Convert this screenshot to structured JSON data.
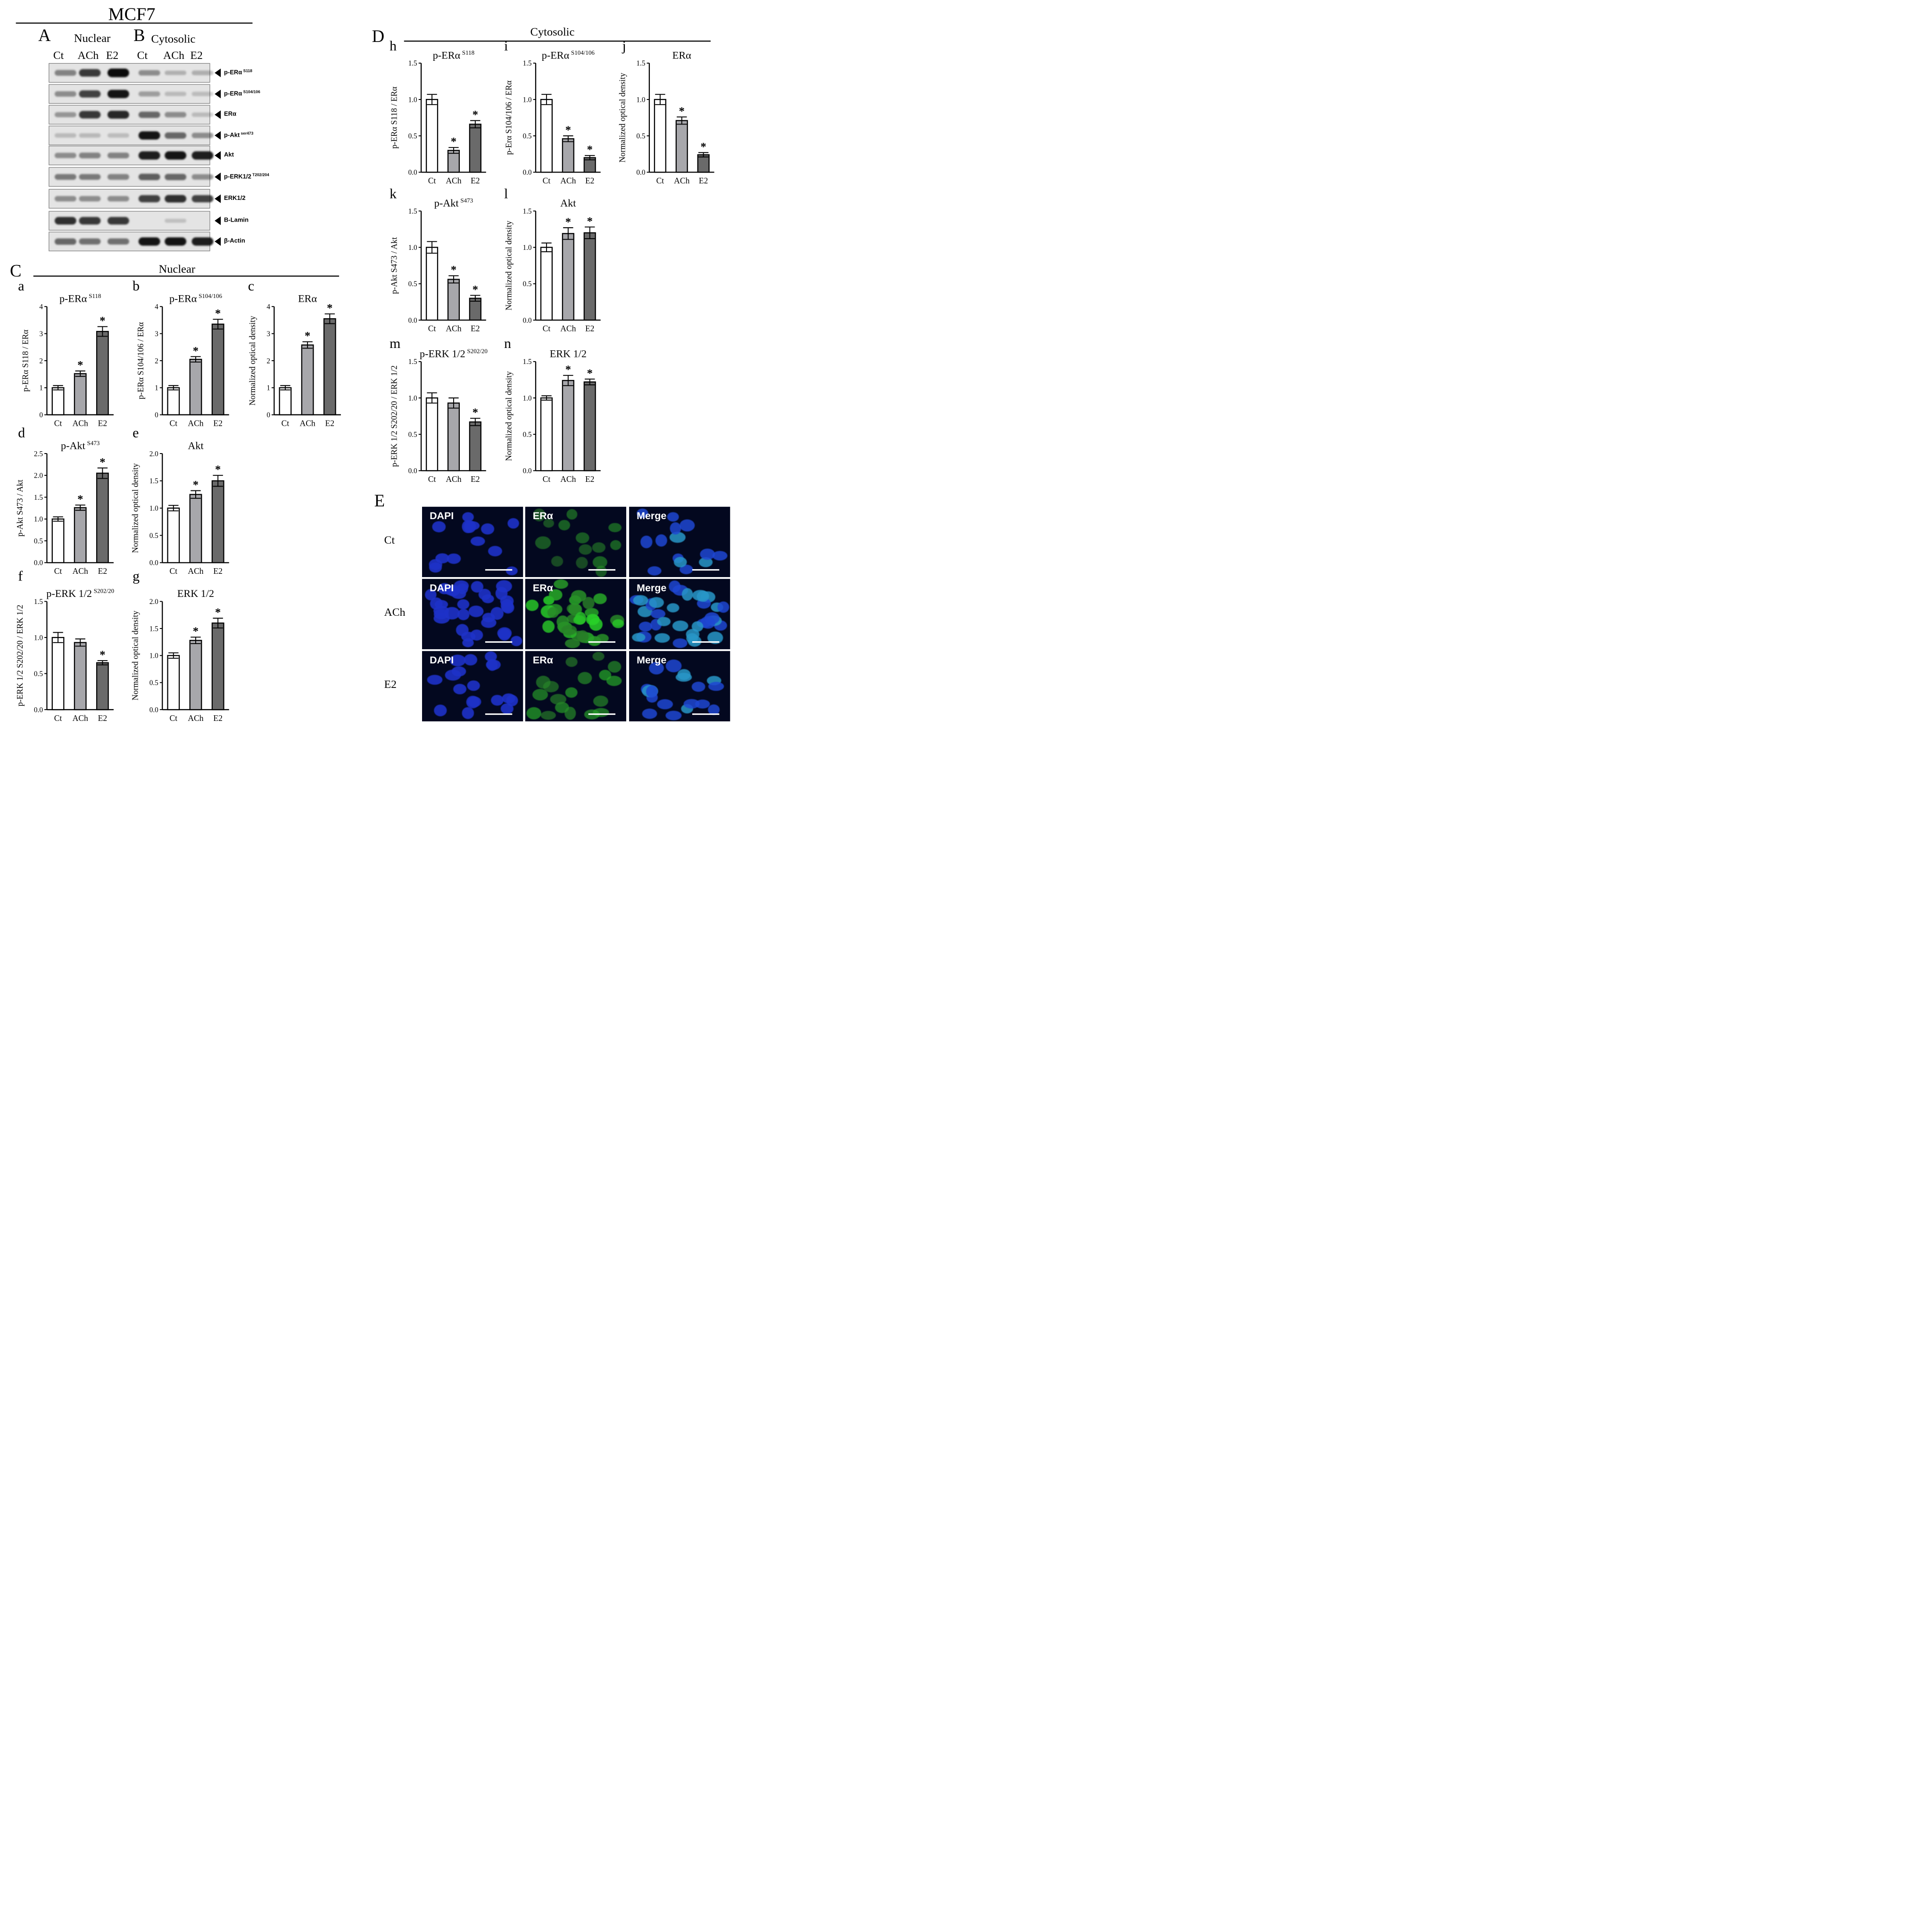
{
  "figure": {
    "cell_line": "MCF7",
    "panels": {
      "A": "A",
      "B": "B",
      "C": "C",
      "D": "D",
      "E": "E"
    },
    "nuclear": "Nuclear",
    "cytosolic": "Cytosolic",
    "lanes": [
      "Ct",
      "ACh",
      "E2",
      "Ct",
      "ACh",
      "E2"
    ],
    "blots": [
      {
        "label": "p-ERα",
        "sup": "S118"
      },
      {
        "label": "p-ERα",
        "sup": "S104/106"
      },
      {
        "label": "ERα",
        "sup": ""
      },
      {
        "label": "p-Akt",
        "sup": "ser473"
      },
      {
        "label": "Akt",
        "sup": ""
      },
      {
        "label": "p-ERK1/2",
        "sup": "T202/204"
      },
      {
        "label": "ERK1/2",
        "sup": ""
      },
      {
        "label": "B-Lamin",
        "sup": ""
      },
      {
        "label": "β-Actin",
        "sup": ""
      }
    ],
    "blot_intensities": [
      [
        0.35,
        0.75,
        1.0,
        0.3,
        0.1,
        0.12
      ],
      [
        0.3,
        0.7,
        0.95,
        0.2,
        0.05,
        0.04
      ],
      [
        0.25,
        0.75,
        0.85,
        0.5,
        0.3,
        0.05
      ],
      [
        0.05,
        0.06,
        0.04,
        0.95,
        0.5,
        0.3
      ],
      [
        0.3,
        0.35,
        0.35,
        0.9,
        0.95,
        0.9
      ],
      [
        0.4,
        0.4,
        0.35,
        0.55,
        0.5,
        0.3
      ],
      [
        0.3,
        0.3,
        0.3,
        0.7,
        0.8,
        0.7
      ],
      [
        0.8,
        0.75,
        0.75,
        0.0,
        0.02,
        0.0
      ],
      [
        0.5,
        0.45,
        0.45,
        0.95,
        0.95,
        0.9
      ]
    ],
    "microscopy": {
      "rows": [
        "Ct",
        "ACh",
        "E2"
      ],
      "columns": [
        "DAPI",
        "ERα",
        "Merge"
      ]
    }
  },
  "chart_data": [
    {
      "id": "a",
      "type": "bar",
      "title": "p-ERα",
      "title_sup": "S118",
      "ylabel": "p-ERα S118 / ERα",
      "categories": [
        "Ct",
        "ACh",
        "E2"
      ],
      "values": [
        1.0,
        1.52,
        3.08
      ],
      "errors": [
        0.08,
        0.1,
        0.18
      ],
      "significant": [
        false,
        true,
        true
      ],
      "ylim": [
        0,
        4
      ],
      "yticks": [
        "0",
        "1",
        "2",
        "3",
        "4"
      ]
    },
    {
      "id": "b",
      "type": "bar",
      "title": "p-ERα",
      "title_sup": "S104/106",
      "ylabel": "p-ERα S104/106 / ERα",
      "categories": [
        "Ct",
        "ACh",
        "E2"
      ],
      "values": [
        1.0,
        2.05,
        3.35
      ],
      "errors": [
        0.08,
        0.1,
        0.18
      ],
      "significant": [
        false,
        true,
        true
      ],
      "ylim": [
        0,
        4
      ],
      "yticks": [
        "0",
        "1",
        "2",
        "3",
        "4"
      ]
    },
    {
      "id": "c",
      "type": "bar",
      "title": "ERα",
      "title_sup": "",
      "ylabel": "Normalized optical density",
      "categories": [
        "Ct",
        "ACh",
        "E2"
      ],
      "values": [
        1.0,
        2.58,
        3.55
      ],
      "errors": [
        0.08,
        0.12,
        0.18
      ],
      "significant": [
        false,
        true,
        true
      ],
      "ylim": [
        0,
        4
      ],
      "yticks": [
        "0",
        "1",
        "2",
        "3",
        "4"
      ]
    },
    {
      "id": "d",
      "type": "bar",
      "title": "p-Akt",
      "title_sup": "S473",
      "ylabel": "p-Akt S473 / Akt",
      "categories": [
        "Ct",
        "ACh",
        "E2"
      ],
      "values": [
        1.0,
        1.26,
        2.05
      ],
      "errors": [
        0.05,
        0.06,
        0.12
      ],
      "significant": [
        false,
        true,
        true
      ],
      "ylim": [
        0,
        2.5
      ],
      "yticks": [
        "0.0",
        "0.5",
        "1.0",
        "1.5",
        "2.0",
        "2.5"
      ]
    },
    {
      "id": "e",
      "type": "bar",
      "title": "Akt",
      "title_sup": "",
      "ylabel": "Normalized optical density",
      "categories": [
        "Ct",
        "ACh",
        "E2"
      ],
      "values": [
        1.0,
        1.25,
        1.5
      ],
      "errors": [
        0.05,
        0.07,
        0.1
      ],
      "significant": [
        false,
        true,
        true
      ],
      "ylim": [
        0,
        2.0
      ],
      "yticks": [
        "0.0",
        "0.5",
        "1.0",
        "1.5",
        "2.0"
      ]
    },
    {
      "id": "f",
      "type": "bar",
      "title": "p-ERK 1/2",
      "title_sup": "S202/20",
      "ylabel": "p-ERK 1/2 S202/20 / ERK 1/2",
      "categories": [
        "Ct",
        "ACh",
        "E2"
      ],
      "values": [
        1.0,
        0.93,
        0.65
      ],
      "errors": [
        0.07,
        0.05,
        0.03
      ],
      "significant": [
        false,
        false,
        true
      ],
      "ylim": [
        0,
        1.5
      ],
      "yticks": [
        "0.0",
        "0.5",
        "1.0",
        "1.5"
      ]
    },
    {
      "id": "g",
      "type": "bar",
      "title": "ERK 1/2",
      "title_sup": "",
      "ylabel": "Normalized optical density",
      "categories": [
        "Ct",
        "ACh",
        "E2"
      ],
      "values": [
        1.0,
        1.28,
        1.6
      ],
      "errors": [
        0.05,
        0.06,
        0.09
      ],
      "significant": [
        false,
        true,
        true
      ],
      "ylim": [
        0,
        2.0
      ],
      "yticks": [
        "0.0",
        "0.5",
        "1.0",
        "1.5",
        "2.0"
      ]
    },
    {
      "id": "h",
      "type": "bar",
      "title": "p-ERα",
      "title_sup": "S118",
      "ylabel": "p-ERα S118 / ERα",
      "categories": [
        "Ct",
        "ACh",
        "E2"
      ],
      "values": [
        1.0,
        0.3,
        0.66
      ],
      "errors": [
        0.07,
        0.04,
        0.05
      ],
      "significant": [
        false,
        true,
        true
      ],
      "ylim": [
        0,
        1.5
      ],
      "yticks": [
        "0.0",
        "0.5",
        "1.0",
        "1.5"
      ]
    },
    {
      "id": "i",
      "type": "bar",
      "title": "p-ERα",
      "title_sup": "S104/106",
      "ylabel": "p-Erα S104/106 / ERα",
      "categories": [
        "Ct",
        "ACh",
        "E2"
      ],
      "values": [
        1.0,
        0.46,
        0.2
      ],
      "errors": [
        0.07,
        0.04,
        0.03
      ],
      "significant": [
        false,
        true,
        true
      ],
      "ylim": [
        0,
        1.5
      ],
      "yticks": [
        "0.0",
        "0.5",
        "1.0",
        "1.5"
      ]
    },
    {
      "id": "j",
      "type": "bar",
      "title": "ERα",
      "title_sup": "",
      "ylabel": "Normalized optical density",
      "categories": [
        "Ct",
        "ACh",
        "E2"
      ],
      "values": [
        1.0,
        0.71,
        0.24
      ],
      "errors": [
        0.07,
        0.05,
        0.03
      ],
      "significant": [
        false,
        true,
        true
      ],
      "ylim": [
        0,
        1.5
      ],
      "yticks": [
        "0.0",
        "0.5",
        "1.0",
        "1.5"
      ]
    },
    {
      "id": "k",
      "type": "bar",
      "title": "p-Akt",
      "title_sup": "S473",
      "ylabel": "p-Akt S473 / Akt",
      "categories": [
        "Ct",
        "ACh",
        "E2"
      ],
      "values": [
        1.0,
        0.56,
        0.3
      ],
      "errors": [
        0.08,
        0.05,
        0.04
      ],
      "significant": [
        false,
        true,
        true
      ],
      "ylim": [
        0,
        1.5
      ],
      "yticks": [
        "0.0",
        "0.5",
        "1.0",
        "1.5"
      ]
    },
    {
      "id": "l",
      "type": "bar",
      "title": "Akt",
      "title_sup": "",
      "ylabel": "Normalized optical density",
      "categories": [
        "Ct",
        "ACh",
        "E2"
      ],
      "values": [
        1.0,
        1.19,
        1.2
      ],
      "errors": [
        0.06,
        0.08,
        0.08
      ],
      "significant": [
        false,
        true,
        true
      ],
      "ylim": [
        0,
        1.5
      ],
      "yticks": [
        "0.0",
        "0.5",
        "1.0",
        "1.5"
      ]
    },
    {
      "id": "m",
      "type": "bar",
      "title": "p-ERK 1/2",
      "title_sup": "S202/20",
      "ylabel": "p-ERK 1/2 S202/20 / ERK 1/2",
      "categories": [
        "Ct",
        "ACh",
        "E2"
      ],
      "values": [
        1.0,
        0.93,
        0.67
      ],
      "errors": [
        0.07,
        0.07,
        0.05
      ],
      "significant": [
        false,
        false,
        true
      ],
      "ylim": [
        0,
        1.5
      ],
      "yticks": [
        "0.0",
        "0.5",
        "1.0",
        "1.5"
      ]
    },
    {
      "id": "n",
      "type": "bar",
      "title": "ERK 1/2",
      "title_sup": "",
      "ylabel": "Normalized optical density",
      "categories": [
        "Ct",
        "ACh",
        "E2"
      ],
      "values": [
        1.0,
        1.24,
        1.22
      ],
      "errors": [
        0.03,
        0.07,
        0.04
      ],
      "significant": [
        false,
        true,
        true
      ],
      "ylim": [
        0,
        1.5
      ],
      "yticks": [
        "0.0",
        "0.5",
        "1.0",
        "1.5"
      ]
    }
  ]
}
